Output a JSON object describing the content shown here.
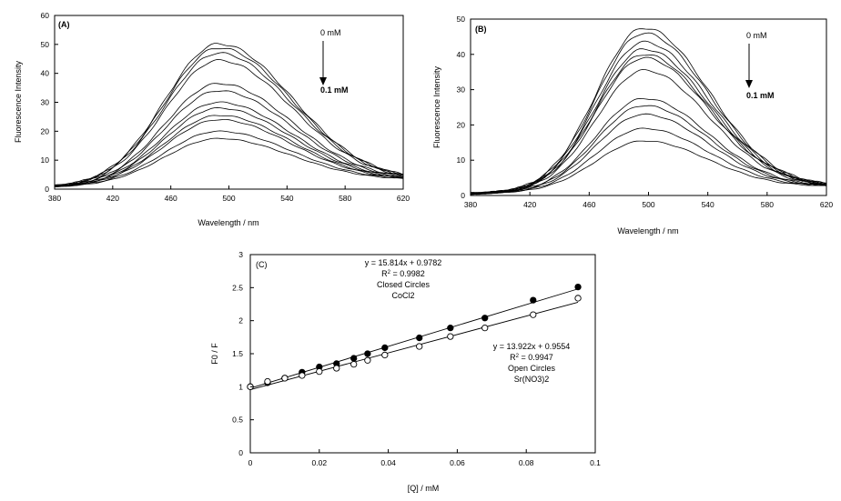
{
  "chart_data": [
    {
      "id": "A",
      "type": "line",
      "panel_label": "(A)",
      "xlabel": "Wavelength / nm",
      "ylabel": "Fluorescence Intensity",
      "xlim": [
        380,
        620
      ],
      "ylim": [
        0,
        60
      ],
      "xticks": [
        380,
        420,
        460,
        500,
        540,
        580,
        620
      ],
      "yticks": [
        0,
        10,
        20,
        30,
        40,
        50,
        60
      ],
      "annotations": {
        "start": "0 mM",
        "end": "0.1 mM"
      },
      "curve_shape": {
        "peak_wavelength": 493,
        "left_width": 52,
        "right_width": 72,
        "base_at_380": 0.7,
        "base_at_620": 3.0
      },
      "series": [
        {
          "peak": 50.2
        },
        {
          "peak": 48.8
        },
        {
          "peak": 47.0
        },
        {
          "peak": 44.5
        },
        {
          "peak": 36.5
        },
        {
          "peak": 34.0
        },
        {
          "peak": 30.0
        },
        {
          "peak": 28.0
        },
        {
          "peak": 25.5
        },
        {
          "peak": 24.0
        },
        {
          "peak": 20.0
        },
        {
          "peak": 17.5
        }
      ]
    },
    {
      "id": "B",
      "type": "line",
      "panel_label": "(B)",
      "xlabel": "Wavelength / nm",
      "ylabel": "Fluorescence Intensity",
      "xlim": [
        380,
        620
      ],
      "ylim": [
        0,
        50
      ],
      "xticks": [
        380,
        420,
        460,
        500,
        540,
        580,
        620
      ],
      "yticks": [
        0,
        10,
        20,
        30,
        40,
        50
      ],
      "annotations": {
        "start": "0 mM",
        "end": "0.1 mM"
      },
      "curve_shape": {
        "peak_wavelength": 497,
        "left_width": 45,
        "right_width": 62,
        "base_at_380": 0.5,
        "base_at_620": 2.5
      },
      "series": [
        {
          "peak": 47.5
        },
        {
          "peak": 46.0
        },
        {
          "peak": 43.5
        },
        {
          "peak": 41.5
        },
        {
          "peak": 40.0
        },
        {
          "peak": 39.0
        },
        {
          "peak": 35.5
        },
        {
          "peak": 27.5
        },
        {
          "peak": 25.5
        },
        {
          "peak": 23.0
        },
        {
          "peak": 19.0
        },
        {
          "peak": 15.5
        }
      ]
    },
    {
      "id": "C",
      "type": "scatter",
      "panel_label": "(C)",
      "xlabel": "[Q] / mM",
      "ylabel": "F0 / F",
      "xlim": [
        0,
        0.1
      ],
      "ylim": [
        0,
        3
      ],
      "xticks": [
        "0",
        "0.02",
        "0.04",
        "0.06",
        "0.08",
        "0.1"
      ],
      "yticks": [
        "0",
        "0.5",
        "1",
        "1.5",
        "2",
        "2.5",
        "3"
      ],
      "series": [
        {
          "name": "CoCl2",
          "marker": "filled",
          "fit": {
            "slope": 15.814,
            "intercept": 0.9782
          },
          "x": [
            0,
            0.005,
            0.01,
            0.015,
            0.02,
            0.025,
            0.03,
            0.034,
            0.039,
            0.049,
            0.058,
            0.068,
            0.082,
            0.095
          ],
          "y": [
            1.0,
            1.06,
            1.13,
            1.22,
            1.3,
            1.35,
            1.43,
            1.5,
            1.59,
            1.74,
            1.89,
            2.04,
            2.31,
            2.51
          ]
        },
        {
          "name": "Sr(NO3)2",
          "marker": "open",
          "fit": {
            "slope": 13.922,
            "intercept": 0.9554
          },
          "x": [
            0,
            0.005,
            0.01,
            0.015,
            0.02,
            0.025,
            0.03,
            0.034,
            0.039,
            0.049,
            0.058,
            0.068,
            0.082,
            0.095
          ],
          "y": [
            1.0,
            1.08,
            1.13,
            1.17,
            1.23,
            1.28,
            1.34,
            1.4,
            1.48,
            1.61,
            1.76,
            1.89,
            2.09,
            2.34
          ]
        }
      ],
      "annotations": {
        "filled": {
          "equation": "y = 15.814x + 0.9782",
          "r2_value": " = 0.9982",
          "line3": "Closed Circles",
          "line4": "CoCl2"
        },
        "open": {
          "equation": "y = 13.922x + 0.9554",
          "r2_value": " = 0.9947",
          "line3": "Open Circles",
          "line4": "Sr(NO3)2"
        }
      }
    }
  ]
}
